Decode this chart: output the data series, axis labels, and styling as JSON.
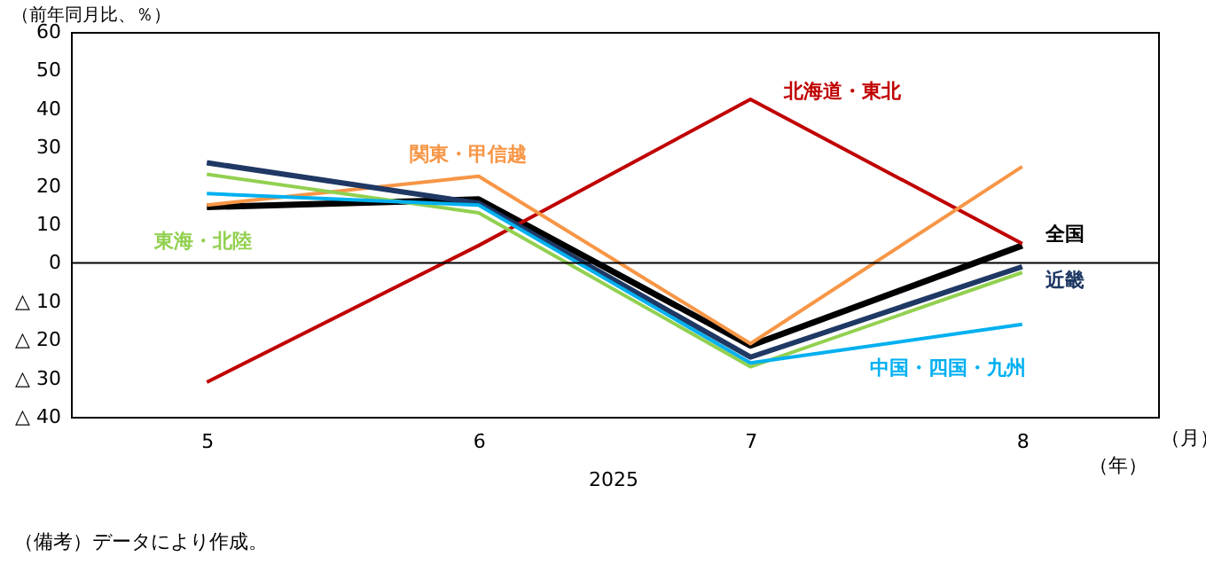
{
  "chart_data": {
    "type": "line",
    "ylabel": "（前年同月比、％）",
    "xlabel": "（月）",
    "categories": [
      "5",
      "6",
      "7",
      "8"
    ],
    "series": [
      {
        "name": "全国",
        "color": "#000000",
        "values": [
          14.5,
          16.5,
          -21.5,
          4.5
        ]
      },
      {
        "name": "北海道・東北",
        "color": "#c00000",
        "values": [
          -31,
          4.5,
          42.5,
          5
        ]
      },
      {
        "name": "関東・甲信越",
        "color": "#f79646",
        "values": [
          15,
          22.5,
          -21,
          25
        ]
      },
      {
        "name": "東海・北陸",
        "color": "#92d050",
        "values": [
          23,
          13,
          -27,
          -2.5
        ]
      },
      {
        "name": "近畿",
        "color": "#1f3864",
        "values": [
          26,
          15.5,
          -24.5,
          -1
        ]
      },
      {
        "name": "中国・四国・九州",
        "color": "#00b0f0",
        "values": [
          18,
          15,
          -26,
          -16
        ]
      }
    ],
    "ylim": [
      -40,
      60
    ],
    "yticks": [
      {
        "value": -40,
        "label": "△ 40"
      },
      {
        "value": -30,
        "label": "△ 30"
      },
      {
        "value": -20,
        "label": "△ 20"
      },
      {
        "value": -10,
        "label": "△ 10"
      },
      0,
      10,
      20,
      30,
      40,
      50,
      60
    ],
    "ref_lines": [
      {
        "axis": "y",
        "value": 0
      }
    ],
    "grid": false,
    "marker": "none",
    "line_style": "solid",
    "annotations": [
      "（年）",
      "2025",
      "（備考）データにより作成。"
    ]
  }
}
